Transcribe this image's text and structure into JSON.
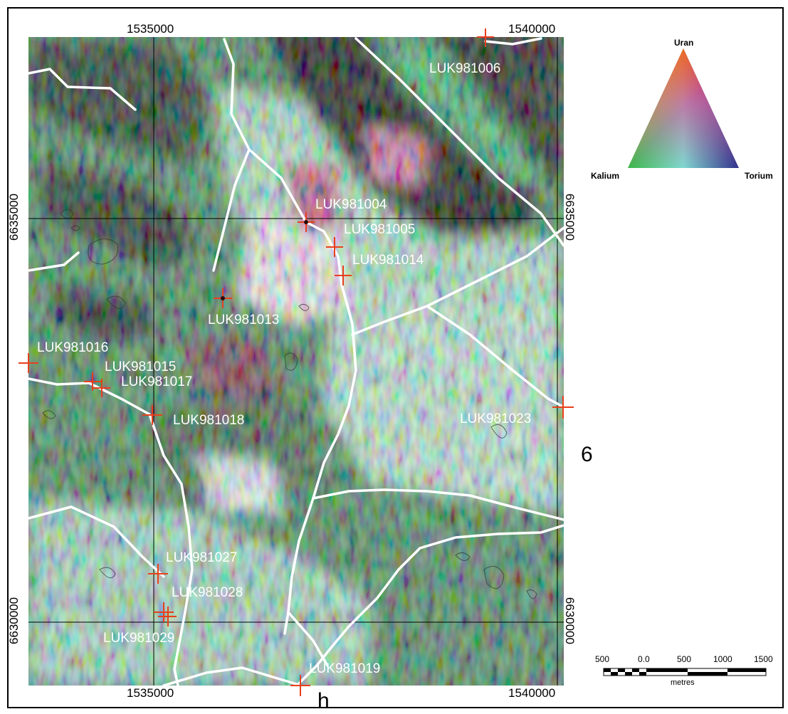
{
  "map": {
    "grid_easting": [
      "1535000",
      "1540000"
    ],
    "grid_northing": [
      "6635000",
      "6630000"
    ],
    "sheet_number": "6",
    "sheet_letter": "h",
    "stations": [
      {
        "id": "LUK981006"
      },
      {
        "id": "LUK981004"
      },
      {
        "id": "LUK981005"
      },
      {
        "id": "LUK981014"
      },
      {
        "id": "LUK981013"
      },
      {
        "id": "LUK981016"
      },
      {
        "id": "LUK981015"
      },
      {
        "id": "LUK981017"
      },
      {
        "id": "LUK981018"
      },
      {
        "id": "LUK981023"
      },
      {
        "id": "LUK981027"
      },
      {
        "id": "LUK981028"
      },
      {
        "id": "LUK981029"
      },
      {
        "id": "LUK981019"
      }
    ],
    "marker_color": "#e8401c",
    "line_color": "#ffffff"
  },
  "legend": {
    "top": "Uran",
    "left": "Kalium",
    "right": "Torium",
    "colors": {
      "uran": "#e8202a",
      "kalium": "#3cb84a",
      "torium": "#30308c"
    }
  },
  "scalebar": {
    "ticks": [
      "500",
      "0.0",
      "500",
      "1000",
      "1500"
    ],
    "unit": "metres"
  }
}
